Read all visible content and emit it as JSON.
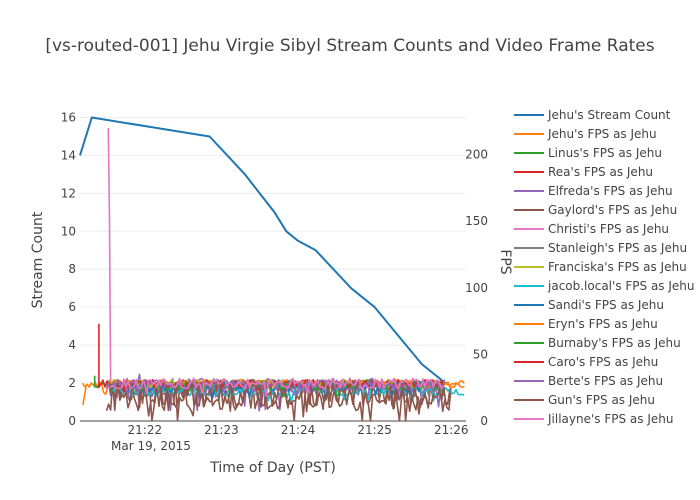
{
  "chart_data": {
    "type": "line",
    "title": "[vs-routed-001] Jehu Virgie Sibyl Stream Counts and Video Frame Rates",
    "xlabel": "Time of Day (PST)",
    "ylabel": "Stream Count",
    "y2label": "FPS",
    "x_date_label": "Mar 19, 2015",
    "x_range_minutes": [
      0,
      6.55
    ],
    "x_ticks": [
      {
        "label": "21:22",
        "minute": 1.1
      },
      {
        "label": "21:23",
        "minute": 2.4
      },
      {
        "label": "21:24",
        "minute": 3.7
      },
      {
        "label": "21:25",
        "minute": 5.0
      },
      {
        "label": "21:26",
        "minute": 6.3
      }
    ],
    "ylim": [
      0,
      16.5
    ],
    "y_ticks": [
      0,
      2,
      4,
      6,
      8,
      10,
      12,
      14,
      16
    ],
    "y2lim": [
      0,
      235
    ],
    "y2_ticks": [
      0,
      50,
      100,
      150,
      200
    ],
    "legend_position": "right",
    "series": [
      {
        "name": "Jehu's Stream Count",
        "color": "#1f77b4",
        "axis": "y",
        "x": [
          0,
          0.2,
          2.2,
          2.5,
          2.8,
          3.05,
          3.3,
          3.5,
          3.7,
          4.0,
          4.3,
          4.6,
          5.0,
          5.4,
          5.8,
          6.2
        ],
        "values": [
          14,
          16,
          15,
          14,
          13,
          12,
          11,
          10,
          9.5,
          9,
          8,
          7,
          6,
          4.5,
          3,
          2
        ]
      },
      {
        "name": "Jehu's FPS as Jehu",
        "color": "#ff7f0e",
        "axis": "y2",
        "x_start": 0.05,
        "x_end": 6.55,
        "base": 28,
        "amp": 3,
        "dips": [
          [
            0.05,
            12
          ],
          [
            0.1,
            25
          ],
          [
            0.3,
            25
          ],
          [
            0.45,
            20
          ]
        ]
      },
      {
        "name": "Linus's FPS as Jehu",
        "color": "#2ca02c",
        "axis": "y2",
        "x_start": 0.25,
        "x_end": 6.2,
        "base": 28,
        "amp": 3,
        "dips": [
          [
            0.25,
            34
          ],
          [
            0.4,
            28
          ]
        ]
      },
      {
        "name": "Rea's FPS as Jehu",
        "color": "#d62728",
        "axis": "y2",
        "x_start": 0.32,
        "x_end": 6.2,
        "base": 28,
        "amp": 3,
        "dips": [
          [
            0.32,
            73
          ],
          [
            0.45,
            30
          ]
        ]
      },
      {
        "name": "Elfreda's FPS as Jehu",
        "color": "#9467bd",
        "axis": "y2",
        "x_start": 0.45,
        "x_end": 6.2,
        "base": 25,
        "amp": 7,
        "dips": [
          [
            0.6,
            30
          ],
          [
            1.0,
            35
          ],
          [
            2.0,
            8
          ]
        ]
      },
      {
        "name": "Gaylord's FPS as Jehu",
        "color": "#8c564b",
        "axis": "y2",
        "x_start": 0.45,
        "x_end": 6.3,
        "base": 18,
        "amp": 11,
        "dips": [
          [
            1.0,
            10
          ],
          [
            1.6,
            12
          ],
          [
            2.0,
            12
          ]
        ]
      },
      {
        "name": "Christi's FPS as Jehu",
        "color": "#e377c2",
        "axis": "y2",
        "x_start": 0.5,
        "x_end": 6.2,
        "base": 28,
        "amp": 3,
        "dips": [
          [
            0.48,
            220
          ],
          [
            0.5,
            150
          ],
          [
            0.52,
            30
          ]
        ]
      },
      {
        "name": "Stanleigh's FPS as Jehu",
        "color": "#7f7f7f",
        "axis": "y2",
        "x_start": 0.5,
        "x_end": 6.2,
        "base": 27,
        "amp": 4,
        "dips": []
      },
      {
        "name": "Franciska's FPS as Jehu",
        "color": "#bcbd22",
        "axis": "y2",
        "x_start": 0.5,
        "x_end": 6.2,
        "base": 28,
        "amp": 3,
        "dips": []
      },
      {
        "name": "jacob.local's FPS as Jehu",
        "color": "#17becf",
        "axis": "y2",
        "x_start": 0.5,
        "x_end": 6.55,
        "base": 22,
        "amp": 3,
        "dips": [
          [
            3.0,
            20
          ],
          [
            3.5,
            17
          ],
          [
            4.5,
            16
          ],
          [
            6.0,
            15
          ],
          [
            6.5,
            20
          ]
        ]
      },
      {
        "name": "Sandi's FPS as Jehu",
        "color": "#1f77b4",
        "axis": "y2",
        "x_start": 0.5,
        "x_end": 6.2,
        "base": 26,
        "amp": 4,
        "dips": []
      },
      {
        "name": "Eryn's FPS as Jehu",
        "color": "#ff7f0e",
        "axis": "y2",
        "x_start": 0.5,
        "x_end": 6.55,
        "base": 29,
        "amp": 2,
        "dips": []
      },
      {
        "name": "Burnaby's FPS as Jehu",
        "color": "#2ca02c",
        "axis": "y2",
        "x_start": 0.5,
        "x_end": 6.2,
        "base": 27,
        "amp": 4,
        "dips": []
      },
      {
        "name": "Caro's FPS as Jehu",
        "color": "#d62728",
        "axis": "y2",
        "x_start": 0.5,
        "x_end": 6.2,
        "base": 28,
        "amp": 3,
        "dips": []
      },
      {
        "name": "Berte's FPS as Jehu",
        "color": "#9467bd",
        "axis": "y2",
        "x_start": 0.5,
        "x_end": 6.2,
        "base": 27,
        "amp": 4,
        "dips": []
      },
      {
        "name": "Gun's FPS as Jehu",
        "color": "#8c564b",
        "axis": "y2",
        "x_start": 0.5,
        "x_end": 6.3,
        "base": 20,
        "amp": 9,
        "dips": []
      },
      {
        "name": "Jillayne's FPS as Jehu",
        "color": "#e377c2",
        "axis": "y2",
        "x_start": 0.5,
        "x_end": 6.2,
        "base": 28,
        "amp": 4,
        "dips": []
      }
    ]
  }
}
